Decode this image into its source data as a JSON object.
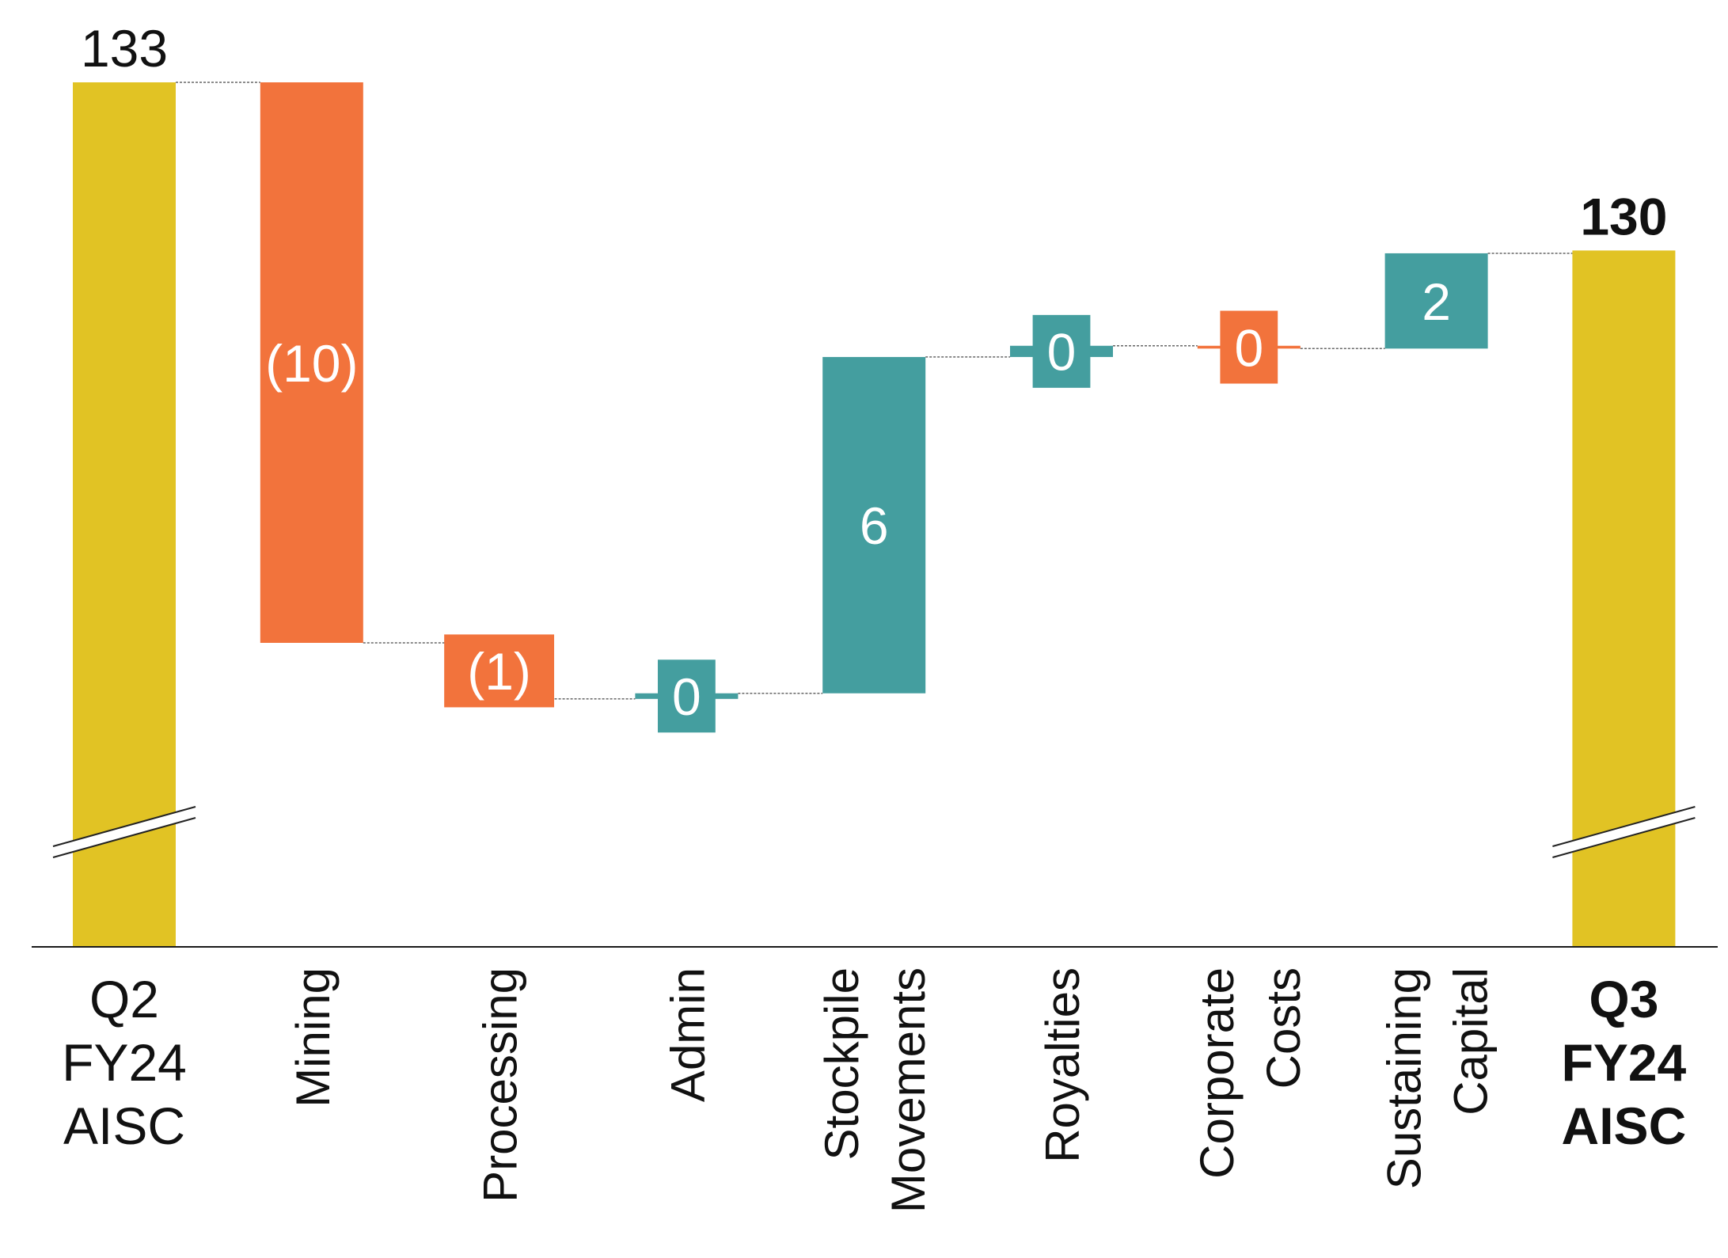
{
  "colors": {
    "total": "#E1C324",
    "decrease": "#F2733C",
    "increase": "#449E9F",
    "axis": "#1a1a1a",
    "connector": "#666666",
    "label_dark": "#111111",
    "label_light": "#ffffff"
  },
  "chart_data": {
    "type": "waterfall",
    "title": "",
    "xlabel": "",
    "ylabel": "",
    "axis_break": true,
    "gridlines": false,
    "categories": [
      "Q2 FY24 AISC",
      "Mining",
      "Processing",
      "Admin",
      "Stockpile Movements",
      "Royalties",
      "Corporate Costs",
      "Sustaining Capital",
      "Q3 FY24 AISC"
    ],
    "bars": [
      {
        "category": "Q2 FY24 AISC",
        "kind": "total",
        "value": 133,
        "label": "133",
        "axis_label_lines": [
          "Q2",
          "FY24",
          "AISC"
        ],
        "bold": false
      },
      {
        "category": "Mining",
        "kind": "decrease",
        "value": -10,
        "label": "(10)",
        "axis_label_lines": [
          "Mining"
        ]
      },
      {
        "category": "Processing",
        "kind": "decrease",
        "value": -1,
        "label": "(1)",
        "axis_label_lines": [
          "Processing"
        ]
      },
      {
        "category": "Admin",
        "kind": "increase",
        "value": 0.1,
        "label": "0",
        "axis_label_lines": [
          "Admin"
        ]
      },
      {
        "category": "Stockpile Movements",
        "kind": "increase",
        "value": 6,
        "label": "6",
        "axis_label_lines": [
          "Stockpile",
          "Movements"
        ]
      },
      {
        "category": "Royalties",
        "kind": "increase",
        "value": 0.2,
        "label": "0",
        "axis_label_lines": [
          "Royalties"
        ]
      },
      {
        "category": "Corporate Costs",
        "kind": "decrease",
        "value": -0.05,
        "label": "0",
        "axis_label_lines": [
          "Corporate",
          "Costs"
        ]
      },
      {
        "category": "Sustaining Capital",
        "kind": "increase",
        "value": 1.7,
        "label": "2",
        "axis_label_lines": [
          "Sustaining",
          "Capital"
        ]
      },
      {
        "category": "Q3 FY24 AISC",
        "kind": "total",
        "value": 130,
        "label": "130",
        "axis_label_lines": [
          "Q3",
          "FY24",
          "AISC"
        ],
        "bold": true
      }
    ]
  }
}
